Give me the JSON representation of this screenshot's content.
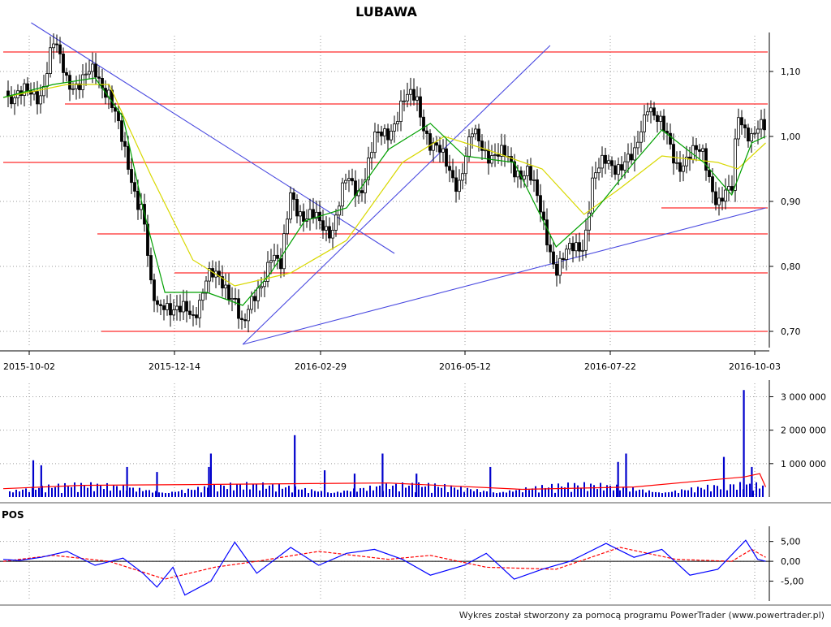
{
  "title": "LUBAWA",
  "indicator_label": "POS",
  "footer": "Wykres został stworzony za pomocą programu PowerTrader (www.powertrader.pl)",
  "colors": {
    "candle": "#000000",
    "sma_short": "#00a000",
    "sma_long": "#d8d800",
    "horizontal_line": "#ff2b2b",
    "trend_line": "#4a4ae0",
    "volume_bar": "#0000cc",
    "volume_avg": "#ff0000",
    "pos_line": "#0000ff",
    "pos_signal": "#ff0000",
    "grid": "#9a9a9a"
  },
  "chart_data": [
    {
      "type": "candlestick",
      "title": "LUBAWA",
      "x_ticks": [
        "2015-10-02",
        "2015-12-14",
        "2016-02-29",
        "2016-05-12",
        "2016-07-22",
        "2016-10-03"
      ],
      "x_range": [
        "2015-09-24",
        "2016-10-11"
      ],
      "y_ticks": [
        "1,10",
        "1,00",
        "0,90",
        "0,80",
        "0,70"
      ],
      "ylim": [
        0.675,
        1.155
      ],
      "grid": true,
      "series": [
        {
          "name": "close",
          "points": [
            [
              "2015-09-24",
              1.07
            ],
            [
              "2015-10-02",
              1.06
            ],
            [
              "2015-10-13",
              1.07
            ],
            [
              "2015-10-19",
              1.14
            ],
            [
              "2015-10-26",
              1.09
            ],
            [
              "2015-11-02",
              1.08
            ],
            [
              "2015-11-09",
              1.1
            ],
            [
              "2015-11-16",
              1.07
            ],
            [
              "2015-11-23",
              0.98
            ],
            [
              "2015-11-30",
              0.91
            ],
            [
              "2015-12-03",
              0.89
            ],
            [
              "2015-12-07",
              0.76
            ],
            [
              "2015-12-10",
              0.73
            ],
            [
              "2015-12-14",
              0.75
            ],
            [
              "2015-12-21",
              0.73
            ],
            [
              "2015-12-28",
              0.72
            ],
            [
              "2016-01-04",
              0.79
            ],
            [
              "2016-01-11",
              0.77
            ],
            [
              "2016-01-18",
              0.76
            ],
            [
              "2016-01-22",
              0.7
            ],
            [
              "2016-01-29",
              0.76
            ],
            [
              "2016-02-05",
              0.82
            ],
            [
              "2016-02-10",
              0.79
            ],
            [
              "2016-02-15",
              0.92
            ],
            [
              "2016-02-22",
              0.87
            ],
            [
              "2016-02-29",
              0.87
            ],
            [
              "2016-03-07",
              0.86
            ],
            [
              "2016-03-14",
              0.93
            ],
            [
              "2016-03-21",
              0.92
            ],
            [
              "2016-03-28",
              0.99
            ],
            [
              "2016-04-04",
              1.01
            ],
            [
              "2016-04-11",
              1.05
            ],
            [
              "2016-04-18",
              1.06
            ],
            [
              "2016-04-25",
              0.99
            ],
            [
              "2016-05-02",
              0.96
            ],
            [
              "2016-05-09",
              0.93
            ],
            [
              "2016-05-12",
              0.96
            ],
            [
              "2016-05-16",
              1.0
            ],
            [
              "2016-05-23",
              0.98
            ],
            [
              "2016-05-30",
              0.97
            ],
            [
              "2016-06-06",
              0.95
            ],
            [
              "2016-06-13",
              0.95
            ],
            [
              "2016-06-20",
              0.87
            ],
            [
              "2016-06-27",
              0.8
            ],
            [
              "2016-07-04",
              0.82
            ],
            [
              "2016-07-11",
              0.84
            ],
            [
              "2016-07-15",
              0.93
            ],
            [
              "2016-07-22",
              0.96
            ],
            [
              "2016-07-29",
              0.96
            ],
            [
              "2016-08-05",
              0.96
            ],
            [
              "2016-08-12",
              1.06
            ],
            [
              "2016-08-19",
              1.01
            ],
            [
              "2016-08-26",
              0.96
            ],
            [
              "2016-09-02",
              0.97
            ],
            [
              "2016-09-09",
              0.97
            ],
            [
              "2016-09-16",
              0.9
            ],
            [
              "2016-09-23",
              0.91
            ],
            [
              "2016-09-26",
              1.04
            ],
            [
              "2016-10-03",
              1.0
            ],
            [
              "2016-10-10",
              1.01
            ]
          ]
        },
        {
          "name": "sma_short",
          "points": [
            [
              "2015-09-24",
              1.06
            ],
            [
              "2015-10-19",
              1.08
            ],
            [
              "2015-11-09",
              1.09
            ],
            [
              "2015-11-23",
              1.03
            ],
            [
              "2015-12-03",
              0.89
            ],
            [
              "2015-12-14",
              0.76
            ],
            [
              "2016-01-04",
              0.76
            ],
            [
              "2016-01-22",
              0.74
            ],
            [
              "2016-02-05",
              0.79
            ],
            [
              "2016-02-22",
              0.87
            ],
            [
              "2016-03-14",
              0.89
            ],
            [
              "2016-04-04",
              0.98
            ],
            [
              "2016-04-25",
              1.02
            ],
            [
              "2016-05-12",
              0.97
            ],
            [
              "2016-06-06",
              0.96
            ],
            [
              "2016-06-27",
              0.83
            ],
            [
              "2016-07-15",
              0.88
            ],
            [
              "2016-08-05",
              0.96
            ],
            [
              "2016-08-19",
              1.01
            ],
            [
              "2016-09-09",
              0.96
            ],
            [
              "2016-09-23",
              0.91
            ],
            [
              "2016-10-03",
              0.99
            ],
            [
              "2016-10-10",
              1.0
            ]
          ]
        },
        {
          "name": "sma_long",
          "points": [
            [
              "2015-09-24",
              1.06
            ],
            [
              "2015-10-26",
              1.08
            ],
            [
              "2015-11-16",
              1.08
            ],
            [
              "2015-12-07",
              0.94
            ],
            [
              "2015-12-28",
              0.81
            ],
            [
              "2016-01-18",
              0.77
            ],
            [
              "2016-02-15",
              0.79
            ],
            [
              "2016-03-14",
              0.84
            ],
            [
              "2016-04-11",
              0.96
            ],
            [
              "2016-05-02",
              1.0
            ],
            [
              "2016-05-23",
              0.98
            ],
            [
              "2016-06-20",
              0.95
            ],
            [
              "2016-07-11",
              0.88
            ],
            [
              "2016-07-29",
              0.92
            ],
            [
              "2016-08-19",
              0.97
            ],
            [
              "2016-09-16",
              0.96
            ],
            [
              "2016-09-26",
              0.95
            ],
            [
              "2016-10-10",
              0.99
            ]
          ]
        }
      ],
      "horizontal_levels": [
        1.13,
        1.05,
        0.96,
        0.85,
        0.79,
        0.7,
        0.89
      ],
      "trend_lines": [
        [
          [
            "2015-10-08",
            1.175
          ],
          [
            "2016-04-07",
            0.82
          ]
        ],
        [
          [
            "2016-01-22",
            0.68
          ],
          [
            "2016-06-24",
            1.14
          ]
        ],
        [
          [
            "2016-01-22",
            0.68
          ],
          [
            "2016-10-10",
            0.89
          ]
        ]
      ]
    },
    {
      "type": "bar",
      "title": "",
      "y_ticks": [
        "3 000 000",
        "2 000 000",
        "1 000 000"
      ],
      "ylim": [
        0,
        3400000
      ],
      "grid": true,
      "series": [
        {
          "name": "volume",
          "points": [
            [
              "2015-10-09",
              1100000
            ],
            [
              "2015-10-13",
              950000
            ],
            [
              "2015-11-25",
              900000
            ],
            [
              "2015-12-10",
              750000
            ],
            [
              "2016-01-06",
              1300000
            ],
            [
              "2016-01-05",
              900000
            ],
            [
              "2016-02-17",
              1850000
            ],
            [
              "2016-03-03",
              800000
            ],
            [
              "2016-03-18",
              700000
            ],
            [
              "2016-04-01",
              1300000
            ],
            [
              "2016-04-18",
              700000
            ],
            [
              "2016-05-25",
              900000
            ],
            [
              "2016-07-28",
              1050000
            ],
            [
              "2016-08-01",
              1300000
            ],
            [
              "2016-09-19",
              1200000
            ],
            [
              "2016-09-29",
              3200000
            ],
            [
              "2016-10-03",
              900000
            ]
          ]
        },
        {
          "name": "volume_avg",
          "points": [
            [
              "2015-09-24",
              250000
            ],
            [
              "2015-11-02",
              350000
            ],
            [
              "2016-01-08",
              380000
            ],
            [
              "2016-02-19",
              400000
            ],
            [
              "2016-04-04",
              420000
            ],
            [
              "2016-06-10",
              230000
            ],
            [
              "2016-08-05",
              300000
            ],
            [
              "2016-09-29",
              600000
            ],
            [
              "2016-10-07",
              700000
            ],
            [
              "2016-10-10",
              300000
            ]
          ]
        }
      ]
    },
    {
      "type": "line",
      "title": "POS",
      "y_ticks": [
        "5,00",
        "0,00",
        "-5,00"
      ],
      "ylim": [
        -10,
        8
      ],
      "grid": true,
      "series": [
        {
          "name": "pos",
          "points": [
            [
              "2015-09-24",
              0.5
            ],
            [
              "2015-10-02",
              0.2
            ],
            [
              "2015-10-13",
              1.0
            ],
            [
              "2015-10-26",
              2.5
            ],
            [
              "2015-11-09",
              -1.0
            ],
            [
              "2015-11-23",
              0.8
            ],
            [
              "2015-12-03",
              -3.0
            ],
            [
              "2015-12-10",
              -6.5
            ],
            [
              "2015-12-18",
              -1.5
            ],
            [
              "2015-12-24",
              -8.5
            ],
            [
              "2016-01-06",
              -5.0
            ],
            [
              "2016-01-18",
              4.8
            ],
            [
              "2016-01-29",
              -3.0
            ],
            [
              "2016-02-15",
              3.5
            ],
            [
              "2016-02-29",
              -1.0
            ],
            [
              "2016-03-14",
              2.0
            ],
            [
              "2016-03-28",
              3.0
            ],
            [
              "2016-04-11",
              0.5
            ],
            [
              "2016-04-25",
              -3.5
            ],
            [
              "2016-05-12",
              -1.0
            ],
            [
              "2016-05-23",
              2.0
            ],
            [
              "2016-06-06",
              -4.5
            ],
            [
              "2016-06-20",
              -2.0
            ],
            [
              "2016-07-04",
              0.0
            ],
            [
              "2016-07-22",
              4.5
            ],
            [
              "2016-08-05",
              1.0
            ],
            [
              "2016-08-19",
              3.0
            ],
            [
              "2016-09-02",
              -3.5
            ],
            [
              "2016-09-16",
              -2.0
            ],
            [
              "2016-09-30",
              5.3
            ],
            [
              "2016-10-06",
              0.5
            ],
            [
              "2016-10-10",
              0.0
            ]
          ]
        },
        {
          "name": "pos_signal",
          "points": [
            [
              "2015-09-24",
              0.0
            ],
            [
              "2015-10-19",
              1.5
            ],
            [
              "2015-11-16",
              0.0
            ],
            [
              "2015-12-14",
              -4.5
            ],
            [
              "2016-01-08",
              -1.5
            ],
            [
              "2016-01-29",
              0.0
            ],
            [
              "2016-02-29",
              2.5
            ],
            [
              "2016-04-04",
              0.5
            ],
            [
              "2016-04-25",
              1.5
            ],
            [
              "2016-05-23",
              -1.5
            ],
            [
              "2016-06-27",
              -2.0
            ],
            [
              "2016-07-29",
              3.5
            ],
            [
              "2016-08-26",
              0.5
            ],
            [
              "2016-09-23",
              0.0
            ],
            [
              "2016-10-03",
              3.0
            ],
            [
              "2016-10-10",
              1.0
            ]
          ]
        }
      ]
    }
  ]
}
